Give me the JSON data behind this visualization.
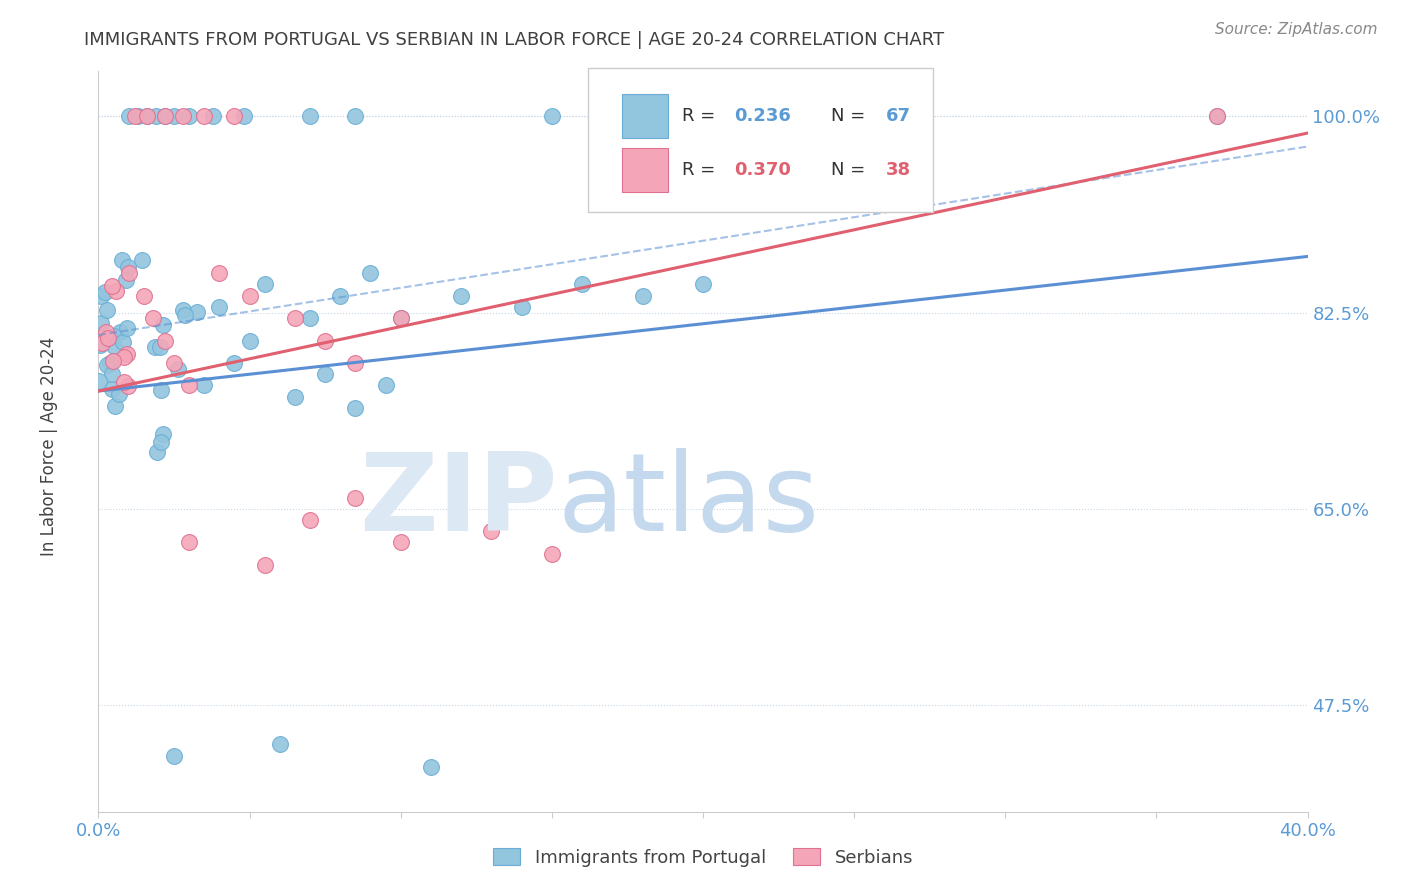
{
  "title": "IMMIGRANTS FROM PORTUGAL VS SERBIAN IN LABOR FORCE | AGE 20-24 CORRELATION CHART",
  "source": "Source: ZipAtlas.com",
  "ylabel": "In Labor Force | Age 20-24",
  "xlim": [
    0.0,
    0.4
  ],
  "ylim": [
    0.38,
    1.04
  ],
  "color_blue": "#92c5de",
  "color_blue_edge": "#6aaed6",
  "color_pink": "#f4a6b8",
  "color_pink_edge": "#e07090",
  "line_blue": "#5b8fd4",
  "line_pink": "#e06070",
  "legend_blue_label": "Immigrants from Portugal",
  "legend_pink_label": "Serbians",
  "R_blue": 0.236,
  "N_blue": 67,
  "R_pink": 0.37,
  "N_pink": 38,
  "background_color": "#ffffff",
  "axis_label_color": "#5b9bd5",
  "title_color": "#404040",
  "ytick_positions": [
    0.475,
    0.65,
    0.825,
    1.0
  ],
  "ytick_labels": [
    "47.5%",
    "65.0%",
    "82.5%",
    "100.0%"
  ],
  "xtick_positions": [
    0.0,
    0.05,
    0.1,
    0.15,
    0.2,
    0.25,
    0.3,
    0.35,
    0.4
  ],
  "xtick_labels": [
    "0.0%",
    "",
    "",
    "",
    "",
    "",
    "",
    "",
    "40.0%"
  ]
}
